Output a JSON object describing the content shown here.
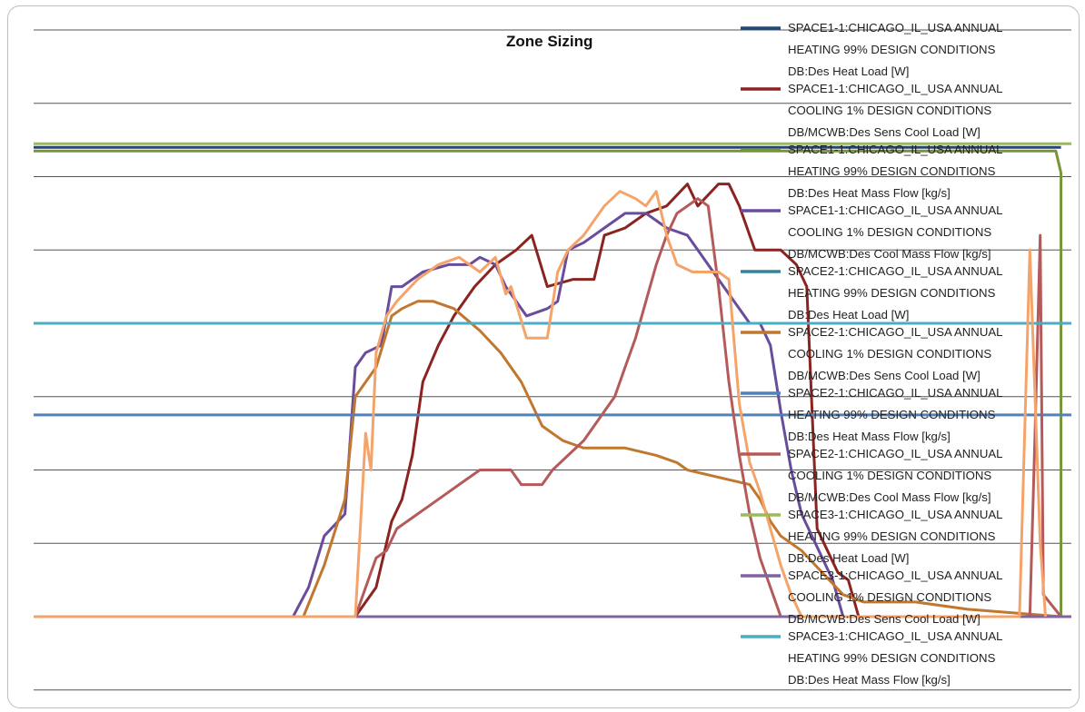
{
  "chart_data": {
    "type": "line",
    "title": "Zone Sizing",
    "xlabel": "",
    "ylabel": "",
    "ylim": [
      0,
      8
    ],
    "xlim": [
      0,
      100
    ],
    "grid": true,
    "legend_position": "right, overlapping plot",
    "series": [
      {
        "name": "SPACE1-1:CHICAGO_IL_USA ANNUAL HEATING 99% DESIGN CONDITIONS DB:Des Heat Load [W]",
        "color": "#1f497d",
        "points": [
          [
            0,
            6.4
          ],
          [
            99,
            6.4
          ]
        ]
      },
      {
        "name": "SPACE1-1:CHICAGO_IL_USA ANNUAL COOLING 1% DESIGN CONDITIONS DB/MCWB:Des Sens Cool Load [W]",
        "color": "#8b2420",
        "points": [
          [
            0,
            0
          ],
          [
            31,
            0
          ],
          [
            33,
            0.4
          ],
          [
            34.5,
            1.3
          ],
          [
            35.5,
            1.6
          ],
          [
            36.5,
            2.2
          ],
          [
            37.5,
            3.2
          ],
          [
            39,
            3.7
          ],
          [
            40.5,
            4.1
          ],
          [
            42.5,
            4.5
          ],
          [
            44.5,
            4.8
          ],
          [
            46.5,
            5
          ],
          [
            48,
            5.2
          ],
          [
            49.5,
            4.5
          ],
          [
            52,
            4.6
          ],
          [
            54,
            4.6
          ],
          [
            55,
            5.2
          ],
          [
            57,
            5.3
          ],
          [
            59,
            5.5
          ],
          [
            61,
            5.6
          ],
          [
            63,
            5.9
          ],
          [
            64,
            5.6
          ],
          [
            66,
            5.9
          ],
          [
            67,
            5.9
          ],
          [
            68,
            5.6
          ],
          [
            69.5,
            5
          ],
          [
            72,
            5
          ],
          [
            73.5,
            4.8
          ],
          [
            74.5,
            4.5
          ],
          [
            75.5,
            1.2
          ],
          [
            76.5,
            0.9
          ],
          [
            77.5,
            0.6
          ],
          [
            78.5,
            0.5
          ],
          [
            79.5,
            0
          ]
        ]
      },
      {
        "name": "SPACE1-1:CHICAGO_IL_USA ANNUAL HEATING 99% DESIGN CONDITIONS DB:Des Heat Mass Flow [kg/s]",
        "color": "#77933c",
        "points": [
          [
            0,
            6.35
          ],
          [
            98.5,
            6.35
          ],
          [
            99,
            6.05
          ],
          [
            99,
            0
          ]
        ]
      },
      {
        "name": "SPACE1-1:CHICAGO_IL_USA ANNUAL COOLING 1% DESIGN CONDITIONS DB/MCWB:Des Cool Mass Flow [kg/s]",
        "color": "#6a4c9c",
        "points": [
          [
            0,
            0
          ],
          [
            25,
            0
          ],
          [
            26.5,
            0.4
          ],
          [
            28,
            1.1
          ],
          [
            30,
            1.4
          ],
          [
            31,
            3.4
          ],
          [
            32,
            3.6
          ],
          [
            33.5,
            3.7
          ],
          [
            34.5,
            4.5
          ],
          [
            35.5,
            4.5
          ],
          [
            37.5,
            4.7
          ],
          [
            40,
            4.8
          ],
          [
            42,
            4.8
          ],
          [
            43,
            4.9
          ],
          [
            44.5,
            4.8
          ],
          [
            45.5,
            4.5
          ],
          [
            47.5,
            4.1
          ],
          [
            49.5,
            4.2
          ],
          [
            50.5,
            4.3
          ],
          [
            51.5,
            5
          ],
          [
            53,
            5.1
          ],
          [
            55,
            5.3
          ],
          [
            57,
            5.5
          ],
          [
            59,
            5.5
          ],
          [
            60,
            5.4
          ],
          [
            61,
            5.3
          ],
          [
            63,
            5.2
          ],
          [
            64,
            5.0
          ],
          [
            66,
            4.6
          ],
          [
            69,
            4.0
          ],
          [
            70,
            4.0
          ],
          [
            71,
            3.7
          ],
          [
            72,
            2.8
          ],
          [
            73,
            2.0
          ],
          [
            74,
            1.4
          ],
          [
            75,
            1.1
          ],
          [
            76,
            0.8
          ],
          [
            77,
            0.5
          ],
          [
            78,
            0
          ]
        ]
      },
      {
        "name": "SPACE2-1:CHICAGO_IL_USA ANNUAL HEATING 99% DESIGN CONDITIONS DB:Des Heat Load [W]",
        "color": "#31849b",
        "points": [
          [
            0,
            4.0
          ],
          [
            100,
            4.0
          ]
        ]
      },
      {
        "name": "SPACE2-1:CHICAGO_IL_USA ANNUAL COOLING 1% DESIGN CONDITIONS DB/MCWB:Des Sens Cool Load [W]",
        "color": "#c0772e",
        "points": [
          [
            0,
            0
          ],
          [
            26,
            0
          ],
          [
            28,
            0.7
          ],
          [
            30,
            1.6
          ],
          [
            31,
            3.0
          ],
          [
            33,
            3.4
          ],
          [
            34.5,
            4.1
          ],
          [
            35.5,
            4.2
          ],
          [
            37,
            4.3
          ],
          [
            38.5,
            4.3
          ],
          [
            40.5,
            4.2
          ],
          [
            43,
            3.9
          ],
          [
            45,
            3.6
          ],
          [
            47,
            3.2
          ],
          [
            49,
            2.6
          ],
          [
            51,
            2.4
          ],
          [
            53,
            2.3
          ],
          [
            54,
            2.3
          ],
          [
            57,
            2.3
          ],
          [
            60,
            2.2
          ],
          [
            62,
            2.1
          ],
          [
            63,
            2.0
          ],
          [
            66,
            1.9
          ],
          [
            69,
            1.8
          ],
          [
            70,
            1.6
          ],
          [
            71,
            1.3
          ],
          [
            72,
            1.1
          ],
          [
            74,
            0.9
          ],
          [
            76,
            0.6
          ],
          [
            78,
            0.3
          ],
          [
            80,
            0.2
          ],
          [
            85,
            0.2
          ],
          [
            90,
            0.1
          ],
          [
            99,
            0
          ]
        ]
      },
      {
        "name": "SPACE2-1:CHICAGO_IL_USA ANNUAL HEATING 99% DESIGN CONDITIONS DB:Des Heat Mass Flow [kg/s]",
        "color": "#4f81bd",
        "points": [
          [
            0,
            2.75
          ],
          [
            100,
            2.75
          ]
        ]
      },
      {
        "name": "SPACE2-1:CHICAGO_IL_USA ANNUAL COOLING 1% DESIGN CONDITIONS DB/MCWB:Des Cool Mass Flow [kg/s]",
        "color": "#b55a5a",
        "points": [
          [
            0,
            0
          ],
          [
            31,
            0
          ],
          [
            32,
            0.4
          ],
          [
            33,
            0.8
          ],
          [
            34,
            0.9
          ],
          [
            35,
            1.2
          ],
          [
            37,
            1.4
          ],
          [
            39,
            1.6
          ],
          [
            41,
            1.8
          ],
          [
            43,
            2.0
          ],
          [
            44,
            2.0
          ],
          [
            46,
            2.0
          ],
          [
            47,
            1.8
          ],
          [
            49,
            1.8
          ],
          [
            50,
            2.0
          ],
          [
            51.5,
            2.2
          ],
          [
            53,
            2.4
          ],
          [
            54.5,
            2.7
          ],
          [
            56,
            3.0
          ],
          [
            57,
            3.4
          ],
          [
            58,
            3.8
          ],
          [
            59,
            4.3
          ],
          [
            60,
            4.8
          ],
          [
            61,
            5.2
          ],
          [
            62,
            5.5
          ],
          [
            63,
            5.6
          ],
          [
            64,
            5.7
          ],
          [
            65,
            5.6
          ],
          [
            66,
            4.5
          ],
          [
            67,
            3.2
          ],
          [
            68,
            2.2
          ],
          [
            69,
            1.4
          ],
          [
            70,
            0.8
          ],
          [
            71,
            0.4
          ],
          [
            72,
            0
          ],
          [
            96,
            0
          ],
          [
            96.5,
            2.5
          ],
          [
            97,
            5.2
          ],
          [
            97.3,
            0.3
          ],
          [
            99,
            0
          ]
        ]
      },
      {
        "name": "SPACE3-1:CHICAGO_IL_USA ANNUAL HEATING 99% DESIGN CONDITIONS DB:Des Heat Load [W]",
        "color": "#9bbb59",
        "points": [
          [
            0,
            6.45
          ],
          [
            100,
            6.45
          ]
        ]
      },
      {
        "name": "SPACE3-1:CHICAGO_IL_USA ANNUAL COOLING 1% DESIGN CONDITIONS DB/MCWB:Des Sens Cool Load [W]",
        "color": "#8064a2",
        "points": [
          [
            0,
            0
          ],
          [
            100,
            0
          ]
        ]
      },
      {
        "name": "SPACE3-1:CHICAGO_IL_USA ANNUAL HEATING 99% DESIGN CONDITIONS DB:Des Heat Mass Flow [kg/s]",
        "color": "#4bacc6",
        "points": [
          [
            0,
            4.0
          ],
          [
            100,
            4.0
          ]
        ]
      },
      {
        "name": "",
        "color": "#f4a46a",
        "points": [
          [
            0,
            0
          ],
          [
            31,
            0
          ],
          [
            32,
            2.5
          ],
          [
            32.5,
            2.0
          ],
          [
            33,
            3.6
          ],
          [
            34,
            4.1
          ],
          [
            35,
            4.3
          ],
          [
            37,
            4.6
          ],
          [
            39,
            4.8
          ],
          [
            41,
            4.9
          ],
          [
            42,
            4.8
          ],
          [
            43,
            4.7
          ],
          [
            44.5,
            4.9
          ],
          [
            45.5,
            4.4
          ],
          [
            46,
            4.5
          ],
          [
            47.5,
            3.8
          ],
          [
            49.5,
            3.8
          ],
          [
            50.5,
            4.7
          ],
          [
            51.5,
            5.0
          ],
          [
            53,
            5.2
          ],
          [
            55,
            5.6
          ],
          [
            56.5,
            5.8
          ],
          [
            58,
            5.7
          ],
          [
            59,
            5.6
          ],
          [
            60,
            5.8
          ],
          [
            61,
            5.2
          ],
          [
            62,
            4.8
          ],
          [
            63.5,
            4.7
          ],
          [
            65,
            4.7
          ],
          [
            66,
            4.7
          ],
          [
            67,
            4.6
          ],
          [
            68,
            2.9
          ],
          [
            69,
            2.1
          ],
          [
            70,
            1.7
          ],
          [
            71,
            1.2
          ],
          [
            72,
            0.7
          ],
          [
            73,
            0.3
          ],
          [
            74,
            0
          ],
          [
            95,
            0
          ],
          [
            96,
            5.0
          ],
          [
            97,
            1.0
          ],
          [
            97.5,
            0
          ]
        ]
      }
    ]
  }
}
